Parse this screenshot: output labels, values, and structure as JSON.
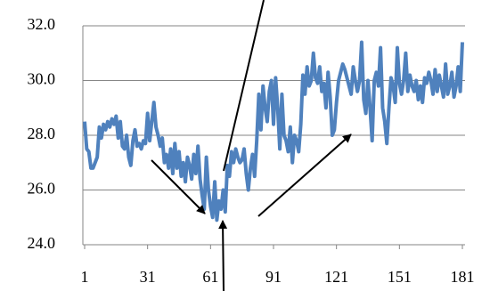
{
  "chart_data": {
    "type": "line",
    "x": [
      1,
      2,
      3,
      4,
      5,
      6,
      7,
      8,
      9,
      10,
      11,
      12,
      13,
      14,
      15,
      16,
      17,
      18,
      19,
      20,
      21,
      22,
      23,
      24,
      25,
      26,
      27,
      28,
      29,
      30,
      31,
      32,
      33,
      34,
      35,
      36,
      37,
      38,
      39,
      40,
      41,
      42,
      43,
      44,
      45,
      46,
      47,
      48,
      49,
      50,
      51,
      52,
      53,
      54,
      55,
      56,
      57,
      58,
      59,
      60,
      61,
      62,
      63,
      64,
      65,
      66,
      67,
      68,
      69,
      70,
      71,
      72,
      73,
      74,
      75,
      76,
      77,
      78,
      79,
      80,
      81,
      82,
      83,
      84,
      85,
      86,
      87,
      88,
      89,
      90,
      91,
      92,
      93,
      94,
      95,
      96,
      97,
      98,
      99,
      100,
      101,
      102,
      103,
      104,
      105,
      106,
      107,
      108,
      109,
      110,
      111,
      112,
      113,
      114,
      115,
      116,
      117,
      118,
      119,
      120,
      121,
      122,
      123,
      124,
      125,
      126,
      127,
      128,
      129,
      130,
      131,
      132,
      133,
      134,
      135,
      136,
      137,
      138,
      139,
      140,
      141,
      142,
      143,
      144,
      145,
      146,
      147,
      148,
      149,
      150,
      151,
      152,
      153,
      154,
      155,
      156,
      157,
      158,
      159,
      160,
      161,
      162,
      163,
      164,
      165,
      166,
      167,
      168,
      169,
      170,
      171,
      172,
      173,
      174,
      175,
      176,
      177,
      178,
      179,
      180,
      181
    ],
    "series": [
      {
        "color": "#4f81bd",
        "values": [
          28.5,
          27.5,
          27.4,
          26.8,
          26.8,
          27.0,
          27.2,
          28.3,
          27.9,
          28.4,
          28.2,
          28.5,
          28.3,
          28.6,
          28.4,
          28.7,
          27.9,
          28.5,
          27.6,
          27.5,
          28.0,
          27.2,
          26.9,
          27.8,
          28.2,
          27.6,
          27.7,
          27.5,
          27.8,
          27.7,
          28.8,
          27.8,
          28.5,
          29.2,
          28.3,
          28.0,
          27.6,
          27.9,
          27.0,
          27.3,
          26.8,
          27.5,
          26.6,
          27.7,
          26.8,
          27.4,
          26.5,
          27.0,
          26.3,
          27.2,
          26.9,
          26.4,
          27.3,
          26.6,
          27.6,
          26.4,
          25.8,
          25.3,
          27.2,
          26.0,
          25.4,
          25.0,
          26.3,
          24.9,
          25.6,
          25.3,
          26.0,
          25.2,
          26.9,
          26.5,
          27.4,
          27.0,
          27.5,
          27.2,
          27.0,
          27.1,
          27.5,
          26.6,
          26.0,
          26.8,
          27.3,
          26.5,
          27.8,
          29.5,
          28.2,
          29.8,
          29.0,
          28.5,
          29.6,
          30.0,
          28.4,
          30.1,
          29.0,
          27.5,
          29.5,
          28.0,
          27.8,
          27.4,
          28.3,
          27.0,
          28.0,
          27.8,
          27.4,
          28.4,
          30.2,
          29.5,
          30.5,
          29.8,
          30.0,
          31.0,
          30.1,
          29.9,
          30.5,
          29.6,
          29.9,
          29.0,
          30.3,
          29.4,
          28.0,
          28.2,
          29.2,
          30.0,
          30.3,
          30.6,
          30.4,
          30.1,
          29.8,
          29.5,
          30.5,
          30.0,
          29.6,
          30.0,
          31.4,
          29.3,
          28.8,
          30.0,
          29.0,
          27.8,
          30.0,
          30.3,
          29.8,
          31.2,
          29.0,
          28.5,
          27.7,
          29.0,
          30.1,
          29.8,
          29.2,
          31.2,
          29.9,
          29.5,
          30.0,
          31.0,
          29.6,
          30.2,
          29.8,
          29.6,
          30.0,
          29.3,
          29.8,
          29.2,
          30.1,
          29.9,
          30.3,
          30.0,
          29.5,
          30.4,
          29.6,
          30.2,
          29.8,
          29.4,
          30.6,
          29.5,
          29.8,
          30.3,
          29.4,
          29.8,
          30.5,
          29.6,
          31.4
        ]
      }
    ],
    "xlim": [
      1,
      181
    ],
    "xticks": [
      1,
      31,
      61,
      91,
      121,
      151,
      181
    ],
    "ylim": [
      24,
      32
    ],
    "yticks": [
      {
        "value": 24,
        "label": "24.0"
      },
      {
        "value": 26,
        "label": "26.0"
      },
      {
        "value": 28,
        "label": "28.0"
      },
      {
        "value": 30,
        "label": "30.0"
      },
      {
        "value": 32,
        "label": "32.0"
      }
    ],
    "grid": true
  }
}
